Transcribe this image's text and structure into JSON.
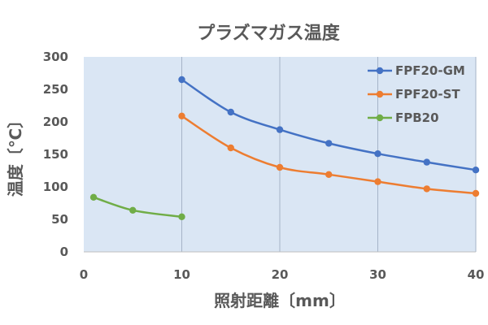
{
  "chart_data": {
    "type": "line",
    "title": "プラズマガス温度",
    "xlabel": "照射距離〔mm〕",
    "ylabel": "温度〔℃〕",
    "xlim": [
      0,
      40
    ],
    "ylim": [
      0,
      300
    ],
    "x_ticks": [
      0,
      10,
      20,
      30,
      40
    ],
    "y_ticks": [
      0,
      50,
      100,
      150,
      200,
      250,
      300
    ],
    "grid": "vertical",
    "plot_background": "#dae6f4",
    "legend_position": "top-right",
    "series": [
      {
        "name": "FPF20-GM",
        "color": "#4472c4",
        "points": [
          [
            10,
            265
          ],
          [
            15,
            215
          ],
          [
            20,
            188
          ],
          [
            25,
            167
          ],
          [
            30,
            151
          ],
          [
            35,
            138
          ],
          [
            40,
            126
          ]
        ]
      },
      {
        "name": "FPF20-ST",
        "color": "#ed7d31",
        "points": [
          [
            10,
            209
          ],
          [
            15,
            160
          ],
          [
            20,
            130
          ],
          [
            25,
            119
          ],
          [
            30,
            108
          ],
          [
            35,
            97
          ],
          [
            40,
            90
          ]
        ]
      },
      {
        "name": "FPB20",
        "color": "#70ad47",
        "points": [
          [
            1,
            84
          ],
          [
            5,
            64
          ],
          [
            10,
            54
          ]
        ]
      }
    ]
  }
}
